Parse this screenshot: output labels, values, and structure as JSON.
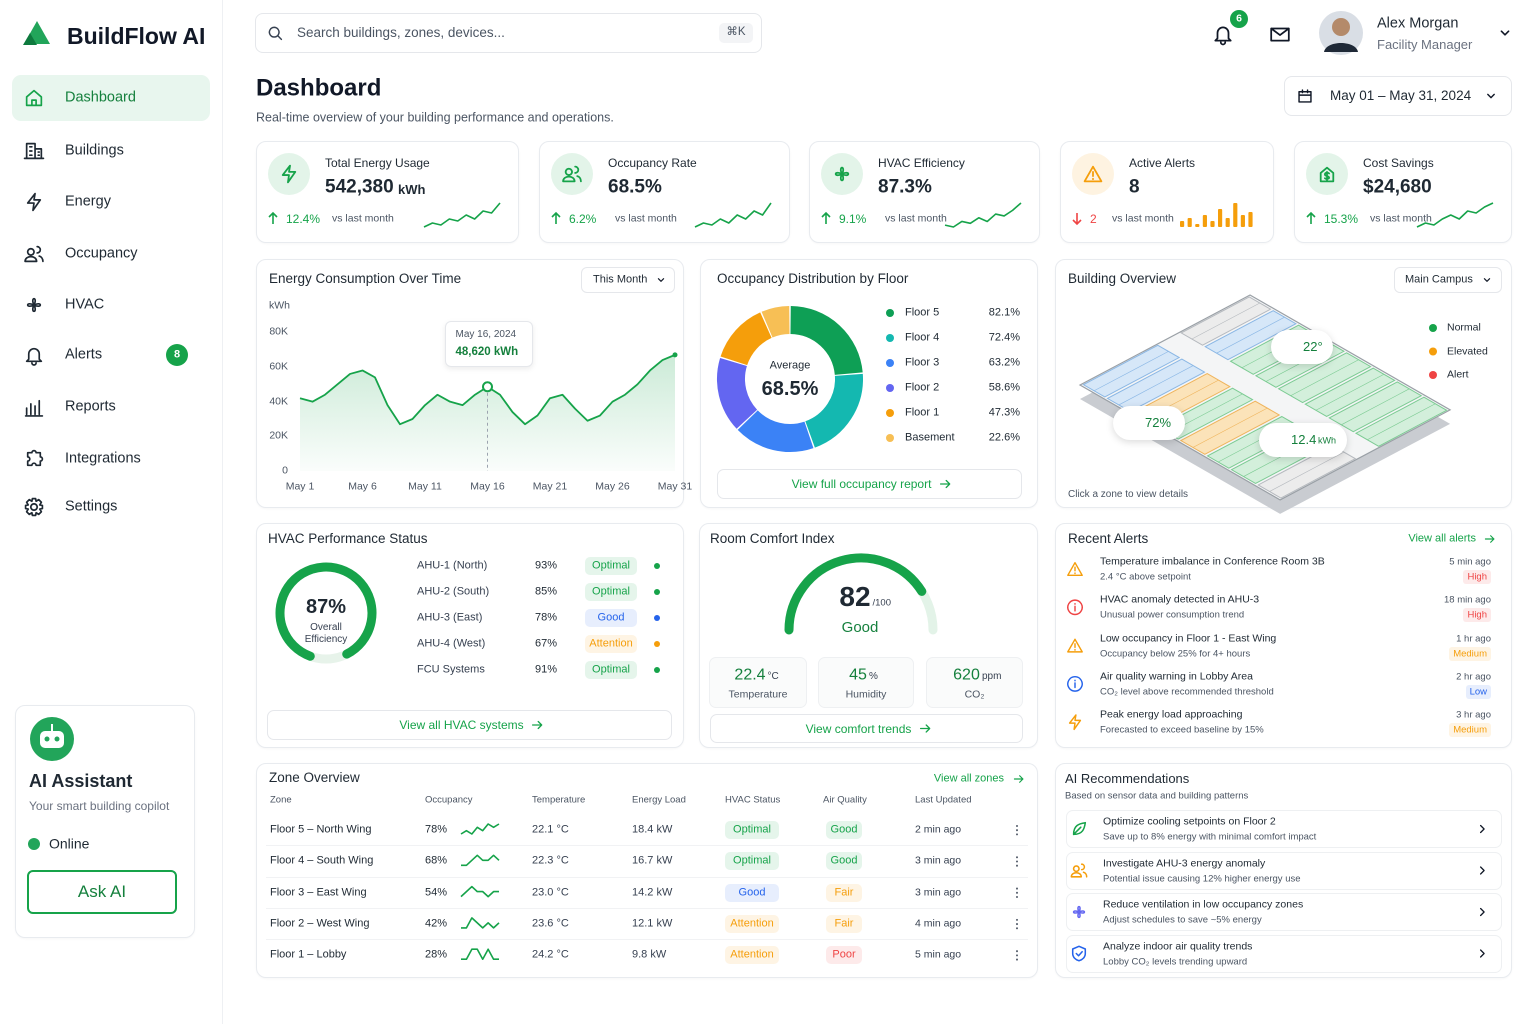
{
  "brand": "BuildFlow AI",
  "nav": [
    {
      "label": "Dashboard",
      "active": true
    },
    {
      "label": "Buildings"
    },
    {
      "label": "Energy"
    },
    {
      "label": "Occupancy"
    },
    {
      "label": "HVAC"
    },
    {
      "label": "Alerts",
      "badge": 8
    },
    {
      "label": "Reports"
    },
    {
      "label": "Integrations"
    },
    {
      "label": "Settings"
    }
  ],
  "assistant": {
    "title": "AI Assistant",
    "subtitle": "Your smart building copilot",
    "status": "Online",
    "button": "Ask AI"
  },
  "search": {
    "placeholder": "Search buildings, zones, devices...",
    "shortcut": "⌘K"
  },
  "notifications": 6,
  "user": {
    "name": "Alex Morgan",
    "role": "Facility Manager"
  },
  "header": {
    "title": "Dashboard",
    "subtitle": "Real-time overview of your building performance and operations.",
    "date_range": "May 01 – May 31, 2024"
  },
  "kpis": [
    {
      "label": "Total Energy Usage",
      "value": "542,380",
      "unit": "kWh",
      "change": "12.4%",
      "direction": "up",
      "color": "#16a34a",
      "compare": "vs last month",
      "trend_type": "line",
      "trend": [
        3,
        4,
        3.5,
        5,
        4.5,
        6,
        5,
        7,
        6.5,
        9
      ]
    },
    {
      "label": "Occupancy Rate",
      "value": "68.5%",
      "change": "6.2%",
      "direction": "up",
      "color": "#16a34a",
      "compare": "vs last month",
      "trend_type": "line",
      "trend": [
        2,
        3,
        2.5,
        4,
        3,
        5,
        4,
        6,
        5,
        8
      ]
    },
    {
      "label": "HVAC Efficiency",
      "value": "87.3%",
      "change": "9.1%",
      "direction": "up",
      "color": "#16a34a",
      "compare": "vs last month",
      "trend_type": "line",
      "trend": [
        3,
        2.5,
        4,
        3.5,
        5,
        4,
        6,
        5.5,
        7,
        9
      ]
    },
    {
      "label": "Active Alerts",
      "value": "8",
      "change": "2",
      "direction": "down",
      "color": "#ef4444",
      "icon_color": "#f59e0b",
      "compare": "vs last month",
      "trend_type": "bar",
      "trend": [
        2,
        3,
        1,
        4,
        2,
        6,
        3,
        8,
        4,
        5
      ]
    },
    {
      "label": "Cost Savings",
      "value": "$24,680",
      "change": "15.3%",
      "direction": "up",
      "color": "#16a34a",
      "compare": "vs last month",
      "trend_type": "line",
      "trend": [
        3,
        4,
        3.5,
        5,
        6,
        5,
        7,
        6.5,
        8,
        9
      ]
    }
  ],
  "energy": {
    "type": "line",
    "title": "Energy Consumption Over Time",
    "filter": "This Month",
    "y_label": "kWh",
    "color": "#16a34a",
    "grid": false,
    "x": [
      1,
      2,
      3,
      4,
      5,
      6,
      7,
      8,
      9,
      10,
      11,
      12,
      13,
      14,
      15,
      16,
      17,
      18,
      19,
      20,
      21,
      22,
      23,
      24,
      25,
      26,
      27,
      28,
      29,
      30,
      31
    ],
    "values": [
      42000,
      40000,
      44000,
      50000,
      56000,
      58000,
      54000,
      38000,
      27000,
      30000,
      38000,
      44000,
      40000,
      38000,
      44000,
      48620,
      44000,
      34000,
      27000,
      32000,
      42000,
      44000,
      36000,
      29000,
      32000,
      40000,
      44000,
      50000,
      58000,
      64000,
      67000
    ],
    "xlim": [
      1,
      31
    ],
    "xticks": [
      {
        "value": 1,
        "label": "May 1"
      },
      {
        "value": 6,
        "label": "May 6"
      },
      {
        "value": 11,
        "label": "May 11"
      },
      {
        "value": 16,
        "label": "May 16"
      },
      {
        "value": 21,
        "label": "May 21"
      },
      {
        "value": 26,
        "label": "May 26"
      },
      {
        "value": 31,
        "label": "May 31"
      }
    ],
    "ylim": [
      0,
      90000
    ],
    "yticks": [
      0,
      {
        "value": 20000,
        "label": "20K"
      },
      {
        "value": 40000,
        "label": "40K"
      },
      {
        "value": 60000,
        "label": "60K"
      },
      {
        "value": 80000,
        "label": "80K"
      }
    ],
    "tooltip": {
      "x": 16,
      "date": "May 16, 2024",
      "value_label": "48,620 kWh"
    }
  },
  "occupancy": {
    "type": "donut",
    "title": "Occupancy Distribution by Floor",
    "center_label": "Average",
    "center_value": "68.5%",
    "categories": [
      "Floor 5",
      "Floor 4",
      "Floor 3",
      "Floor 2",
      "Floor 1",
      "Basement"
    ],
    "values": [
      82.1,
      72.4,
      63.2,
      58.6,
      47.3,
      22.6
    ],
    "value_labels": [
      "82.1%",
      "72.4%",
      "63.2%",
      "58.6%",
      "47.3%",
      "22.6%"
    ],
    "colors": [
      "#0e9f55",
      "#14b8b0",
      "#3b82f6",
      "#6366f1",
      "#f59e0b",
      "#f7bf55"
    ],
    "link": "View full occupancy report"
  },
  "building": {
    "title": "Building Overview",
    "filter": "Main Campus",
    "legend": [
      {
        "label": "Normal",
        "color": "#16a34a"
      },
      {
        "label": "Elevated",
        "color": "#f59e0b"
      },
      {
        "label": "Alert",
        "color": "#ef4444"
      }
    ],
    "callouts": [
      {
        "value": "22°"
      },
      {
        "value": "72%"
      },
      {
        "value": "12.4",
        "unit": "kWh"
      }
    ],
    "hint": "Click a zone to view details"
  },
  "hvac": {
    "title": "HVAC Performance Status",
    "gauge": {
      "value": 87,
      "label": "87%",
      "caption": "Overall Efficiency",
      "range": [
        0,
        100
      ]
    },
    "systems": [
      {
        "name": "AHU-1 (North)",
        "value": "93%",
        "status": "Optimal",
        "color": "#16a34a"
      },
      {
        "name": "AHU-2 (South)",
        "value": "85%",
        "status": "Optimal",
        "color": "#16a34a"
      },
      {
        "name": "AHU-3 (East)",
        "value": "78%",
        "status": "Good",
        "color": "#2563eb"
      },
      {
        "name": "AHU-4 (West)",
        "value": "67%",
        "status": "Attention",
        "color": "#f59e0b"
      },
      {
        "name": "FCU Systems",
        "value": "91%",
        "status": "Optimal",
        "color": "#16a34a"
      }
    ],
    "link": "View all HVAC systems"
  },
  "comfort": {
    "title": "Room Comfort Index",
    "gauge": {
      "value": 82,
      "scale_label": "/100",
      "rating": "Good",
      "range": [
        0,
        100
      ]
    },
    "metrics": [
      {
        "value": "22.4",
        "unit": "°C",
        "label": "Temperature"
      },
      {
        "value": "45",
        "unit": "%",
        "label": "Humidity"
      },
      {
        "value": "620",
        "unit": "ppm",
        "label": "CO₂"
      }
    ],
    "link": "View comfort trends"
  },
  "alerts": {
    "title": "Recent Alerts",
    "link": "View all alerts",
    "items": [
      {
        "title": "Temperature imbalance in Conference Room 3B",
        "detail": "2.4 °C above setpoint",
        "time": "5 min ago",
        "severity": "High",
        "color": "#ef4444",
        "icon_color": "#f59e0b"
      },
      {
        "title": "HVAC anomaly detected in AHU-3",
        "detail": "Unusual power consumption trend",
        "time": "18 min ago",
        "severity": "High",
        "color": "#ef4444",
        "icon_color": "#ef4444"
      },
      {
        "title": "Low occupancy in Floor 1 - East Wing",
        "detail": "Occupancy below 25% for 4+ hours",
        "time": "1 hr ago",
        "severity": "Medium",
        "color": "#f59e0b",
        "icon_color": "#f59e0b"
      },
      {
        "title": "Air quality warning in Lobby Area",
        "detail": "CO₂ level above recommended threshold",
        "time": "2 hr ago",
        "severity": "Low",
        "color": "#2563eb",
        "icon_color": "#2563eb"
      },
      {
        "title": "Peak energy load approaching",
        "detail": "Forecasted to exceed baseline by 15%",
        "time": "3 hr ago",
        "severity": "Medium",
        "color": "#f59e0b",
        "icon_color": "#f59e0b"
      }
    ]
  },
  "zones": {
    "title": "Zone Overview",
    "link": "View all zones",
    "columns": [
      "Zone",
      "Occupancy",
      "Temperature",
      "Energy Load",
      "HVAC Status",
      "Air Quality",
      "Last Updated"
    ],
    "rows": [
      {
        "zone": "Floor 5 – North Wing",
        "occupancy": "78%",
        "trend": [
          3,
          4,
          3,
          5,
          4,
          6,
          5,
          6
        ],
        "temperature": "22.1 °C",
        "energy": "18.4 kW",
        "hvac": {
          "label": "Optimal",
          "color": "#16a34a"
        },
        "air": {
          "label": "Good",
          "color": "#16a34a"
        },
        "updated": "2 min ago"
      },
      {
        "zone": "Floor 4 – South Wing",
        "occupancy": "68%",
        "trend": [
          3,
          3,
          4,
          5,
          4,
          4,
          5,
          4
        ],
        "temperature": "22.3 °C",
        "energy": "16.7 kW",
        "hvac": {
          "label": "Optimal",
          "color": "#16a34a"
        },
        "air": {
          "label": "Good",
          "color": "#16a34a"
        },
        "updated": "3 min ago"
      },
      {
        "zone": "Floor 3 – East Wing",
        "occupancy": "54%",
        "trend": [
          3,
          4,
          5,
          4,
          4,
          3,
          4,
          4
        ],
        "temperature": "23.0 °C",
        "energy": "14.2 kW",
        "hvac": {
          "label": "Good",
          "color": "#2563eb"
        },
        "air": {
          "label": "Fair",
          "color": "#f59e0b"
        },
        "updated": "3 min ago"
      },
      {
        "zone": "Floor 2 – West Wing",
        "occupancy": "42%",
        "trend": [
          3,
          3,
          5,
          4,
          3,
          4,
          3,
          4
        ],
        "temperature": "23.6 °C",
        "energy": "12.1 kW",
        "hvac": {
          "label": "Attention",
          "color": "#f59e0b"
        },
        "air": {
          "label": "Fair",
          "color": "#f59e0b"
        },
        "updated": "4 min ago"
      },
      {
        "zone": "Floor 1 – Lobby",
        "occupancy": "28%",
        "trend": [
          3,
          3,
          4,
          4,
          3,
          4,
          3,
          3
        ],
        "temperature": "24.2 °C",
        "energy": "9.8 kW",
        "hvac": {
          "label": "Attention",
          "color": "#f59e0b"
        },
        "air": {
          "label": "Poor",
          "color": "#ef4444"
        },
        "updated": "5 min ago"
      }
    ]
  },
  "recs": {
    "title": "AI Recommendations",
    "subtitle": "Based on sensor data and building patterns",
    "items": [
      {
        "title": "Optimize cooling setpoints on Floor 2",
        "detail": "Save up to 8% energy with minimal comfort impact",
        "color": "#16a34a"
      },
      {
        "title": "Investigate AHU-3 energy anomaly",
        "detail": "Potential issue causing 12% higher energy use",
        "color": "#f59e0b"
      },
      {
        "title": "Reduce ventilation in low occupancy zones",
        "detail": "Adjust schedules to save ~5% energy",
        "color": "#6366f1"
      },
      {
        "title": "Analyze indoor air quality trends",
        "detail": "Lobby CO₂ levels trending upward",
        "color": "#2563eb"
      }
    ]
  }
}
